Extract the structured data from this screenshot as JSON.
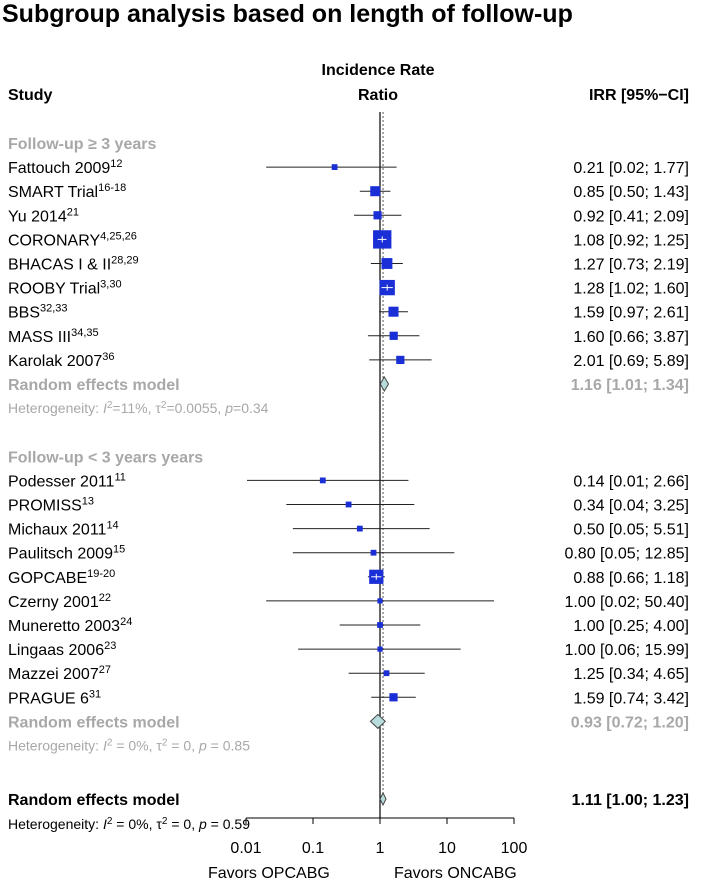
{
  "title": "Subgroup analysis based on length of follow-up",
  "headers": {
    "study": "Study",
    "plot_line1": "Incidence Rate",
    "plot_line2": "Ratio",
    "ci": "IRR [95%−CI]"
  },
  "chart_data": {
    "type": "forest",
    "scale": "log",
    "xlim": [
      0.01,
      100
    ],
    "reference_value": 1,
    "x_ticks": [
      0.01,
      0.1,
      1,
      10,
      100
    ],
    "x_tick_labels": [
      "0.01",
      "0.1",
      "1",
      "10",
      "100"
    ],
    "xlabel_left": "Favors  OPCABG",
    "xlabel_right": "Favors  ONCABG",
    "subgroups": [
      {
        "label": "Follow-up ≥ 3 years",
        "studies": [
          {
            "name": "Fattouch 2009",
            "ref": "12",
            "irr": 0.21,
            "lower": 0.02,
            "upper": 1.77,
            "ci_text": "0.21 [0.02;  1.77]",
            "weight": 1
          },
          {
            "name": "SMART Trial",
            "ref": "16-18",
            "irr": 0.85,
            "lower": 0.5,
            "upper": 1.43,
            "ci_text": "0.85 [0.50;  1.43]",
            "weight": 3
          },
          {
            "name": "Yu 2014",
            "ref": "21",
            "irr": 0.92,
            "lower": 0.41,
            "upper": 2.09,
            "ci_text": "0.92 [0.41;  2.09]",
            "weight": 2
          },
          {
            "name": "CORONARY",
            "ref": "4,25,26",
            "irr": 1.08,
            "lower": 0.92,
            "upper": 1.25,
            "ci_text": "1.08 [0.92;  1.25]",
            "weight": 10
          },
          {
            "name": "BHACAS I & II",
            "ref": "28,29",
            "irr": 1.27,
            "lower": 0.73,
            "upper": 2.19,
            "ci_text": "1.27 [0.73;  2.19]",
            "weight": 3.5
          },
          {
            "name": "ROOBY Trial",
            "ref": "3,30",
            "irr": 1.28,
            "lower": 1.02,
            "upper": 1.6,
            "ci_text": "1.28 [1.02;  1.60]",
            "weight": 7
          },
          {
            "name": "BBS",
            "ref": "32,33",
            "irr": 1.59,
            "lower": 0.97,
            "upper": 2.61,
            "ci_text": "1.59 [0.97;  2.61]",
            "weight": 3
          },
          {
            "name": "MASS III",
            "ref": "34,35",
            "irr": 1.6,
            "lower": 0.66,
            "upper": 3.87,
            "ci_text": "1.60 [0.66;  3.87]",
            "weight": 2
          },
          {
            "name": "Karolak 2007",
            "ref": "36",
            "irr": 2.01,
            "lower": 0.69,
            "upper": 5.89,
            "ci_text": "2.01 [0.69;  5.89]",
            "weight": 2
          }
        ],
        "pooled": {
          "label": "Random effects model",
          "irr": 1.16,
          "lower": 1.01,
          "upper": 1.34,
          "ci_text": "1.16 [1.01;  1.34]"
        },
        "heterogeneity": {
          "i2_symbol": "I",
          "i2_rest": "=11%, τ",
          "tau_rest": "=0.0055, ",
          "p_symbol": "p",
          "p_rest": "=0.34",
          "prefix": "Heterogeneity: "
        }
      },
      {
        "label": "Follow-up < 3 years years",
        "studies": [
          {
            "name": "Podesser 2011",
            "ref": "11",
            "irr": 0.14,
            "lower": 0.01,
            "upper": 2.66,
            "ci_text": "0.14 [0.01;  2.66]",
            "weight": 1
          },
          {
            "name": "PROMISS",
            "ref": "13",
            "irr": 0.34,
            "lower": 0.04,
            "upper": 3.25,
            "ci_text": "0.34 [0.04;  3.25]",
            "weight": 1
          },
          {
            "name": "Michaux 2011",
            "ref": "14",
            "irr": 0.5,
            "lower": 0.05,
            "upper": 5.51,
            "ci_text": "0.50 [0.05;  5.51]",
            "weight": 1
          },
          {
            "name": "Paulitsch 2009",
            "ref": "15",
            "irr": 0.8,
            "lower": 0.05,
            "upper": 12.85,
            "ci_text": "0.80 [0.05; 12.85]",
            "weight": 1
          },
          {
            "name": "GOPCABE",
            "ref": "19-20",
            "irr": 0.88,
            "lower": 0.66,
            "upper": 1.18,
            "ci_text": "0.88 [0.66;  1.18]",
            "weight": 6
          },
          {
            "name": "Czerny 2001",
            "ref": "22",
            "irr": 1.0,
            "lower": 0.02,
            "upper": 50.4,
            "ci_text": "1.00 [0.02; 50.40]",
            "weight": 0.8
          },
          {
            "name": "Muneretto 2003",
            "ref": "24",
            "irr": 1.0,
            "lower": 0.25,
            "upper": 4.0,
            "ci_text": "1.00 [0.25;  4.00]",
            "weight": 1
          },
          {
            "name": "Lingaas 2006",
            "ref": "23",
            "irr": 1.0,
            "lower": 0.06,
            "upper": 15.99,
            "ci_text": "1.00 [0.06; 15.99]",
            "weight": 0.8
          },
          {
            "name": "Mazzei 2007",
            "ref": "27",
            "irr": 1.25,
            "lower": 0.34,
            "upper": 4.65,
            "ci_text": "1.25 [0.34;  4.65]",
            "weight": 1
          },
          {
            "name": "PRAGUE 6",
            "ref": "31",
            "irr": 1.59,
            "lower": 0.74,
            "upper": 3.42,
            "ci_text": "1.59 [0.74;  3.42]",
            "weight": 2
          }
        ],
        "pooled": {
          "label": "Random effects model",
          "irr": 0.93,
          "lower": 0.72,
          "upper": 1.2,
          "ci_text": "0.93 [0.72;  1.20]"
        },
        "heterogeneity": {
          "prefix": "Heterogeneity: ",
          "i2_symbol": "I",
          "i2_rest": " = 0%, τ",
          "tau_rest": " = 0, ",
          "p_symbol": "p",
          "p_rest": " = 0.85"
        }
      }
    ],
    "overall": {
      "label": "Random effects model",
      "irr": 1.11,
      "lower": 1.0,
      "upper": 1.23,
      "ci_text": "1.11 [1.00;  1.23]",
      "heterogeneity": {
        "prefix": "Heterogeneity: ",
        "i2_symbol": "I",
        "i2_rest": " = 0%, τ",
        "tau_rest": " = 0, ",
        "p_symbol": "p",
        "p_rest": " = 0.59"
      }
    }
  },
  "colors": {
    "square": "#1a2fd6",
    "diamond_fill": "#b8dcdc",
    "diamond_stroke": "#444444",
    "gray_text": "#a8a8a8",
    "line": "#000000"
  }
}
